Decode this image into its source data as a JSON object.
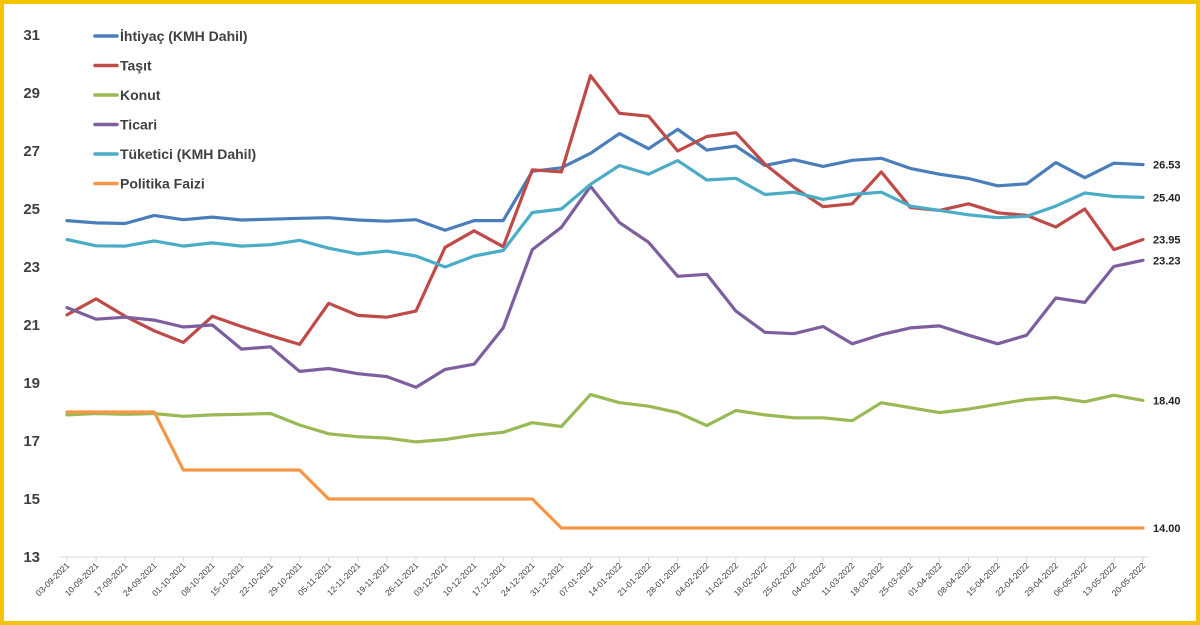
{
  "chart_data": {
    "type": "line",
    "title": "",
    "xlabel": "",
    "ylabel": "",
    "ylim": [
      13,
      31
    ],
    "yticks": [
      "13",
      "15",
      "17",
      "19",
      "21",
      "23",
      "25",
      "27",
      "29",
      "31"
    ],
    "grid": false,
    "legend_position": "top-left",
    "x": [
      "03-09-2021",
      "10-09-2021",
      "17-09-2021",
      "24-09-2021",
      "01-10-2021",
      "08-10-2021",
      "15-10-2021",
      "22-10-2021",
      "29-10-2021",
      "05-11-2021",
      "12-11-2021",
      "19-11-2021",
      "26-11-2021",
      "03-12-2021",
      "10-12-2021",
      "17-12-2021",
      "24-12-2021",
      "31-12-2021",
      "07-01-2022",
      "14-01-2022",
      "21-01-2022",
      "28-01-2022",
      "04-02-2022",
      "11-02-2022",
      "18-02-2022",
      "25-02-2022",
      "04-03-2022",
      "11-03-2022",
      "18-03-2022",
      "25-03-2022",
      "01-04-2022",
      "08-04-2022",
      "15-04-2022",
      "22-04-2022",
      "29-04-2022",
      "06-05-2022",
      "13-05-2022",
      "20-05-2022"
    ],
    "series": [
      {
        "name": "İhtiyaç (KMH Dahil)",
        "color": "#4a7ebb",
        "end_label": "26.53",
        "values": [
          24.6,
          24.52,
          24.5,
          24.78,
          24.63,
          24.72,
          24.62,
          24.65,
          24.68,
          24.7,
          24.62,
          24.58,
          24.63,
          24.27,
          24.6,
          24.6,
          26.3,
          26.42,
          26.92,
          27.6,
          27.08,
          27.75,
          27.03,
          27.17,
          26.5,
          26.7,
          26.47,
          26.68,
          26.75,
          26.4,
          26.2,
          26.05,
          25.8,
          25.87,
          26.6,
          26.08,
          26.58,
          26.53
        ]
      },
      {
        "name": "Taşıt",
        "color": "#be4b48",
        "end_label": "23.95",
        "values": [
          21.35,
          21.9,
          21.3,
          20.8,
          20.4,
          21.3,
          20.95,
          20.63,
          20.33,
          21.75,
          21.33,
          21.27,
          21.48,
          23.68,
          24.25,
          23.7,
          26.35,
          26.28,
          29.6,
          28.3,
          28.2,
          27.0,
          27.5,
          27.63,
          26.55,
          25.75,
          25.08,
          25.18,
          26.28,
          25.05,
          24.95,
          25.18,
          24.87,
          24.78,
          24.38,
          25.0,
          23.6,
          23.95
        ]
      },
      {
        "name": "Konut",
        "color": "#98b954",
        "end_label": "18.40",
        "values": [
          17.9,
          17.95,
          17.92,
          17.95,
          17.85,
          17.9,
          17.92,
          17.95,
          17.55,
          17.25,
          17.15,
          17.1,
          16.97,
          17.05,
          17.2,
          17.3,
          17.63,
          17.5,
          18.6,
          18.32,
          18.2,
          17.98,
          17.53,
          18.05,
          17.9,
          17.8,
          17.8,
          17.7,
          18.32,
          18.15,
          17.98,
          18.1,
          18.27,
          18.43,
          18.5,
          18.35,
          18.58,
          18.4
        ]
      },
      {
        "name": "Ticari",
        "color": "#7d5fa0",
        "end_label": "23.23",
        "values": [
          21.6,
          21.2,
          21.27,
          21.17,
          20.93,
          21.0,
          20.17,
          20.25,
          19.4,
          19.5,
          19.32,
          19.22,
          18.85,
          19.47,
          19.65,
          20.9,
          23.6,
          24.37,
          25.78,
          24.53,
          23.85,
          22.68,
          22.75,
          21.48,
          20.75,
          20.7,
          20.95,
          20.35,
          20.67,
          20.9,
          20.97,
          20.65,
          20.35,
          20.65,
          21.93,
          21.78,
          23.02,
          23.23
        ]
      },
      {
        "name": "Tüketici (KMH Dahil)",
        "color": "#4bacc6",
        "end_label": "25.40",
        "values": [
          23.95,
          23.73,
          23.72,
          23.9,
          23.72,
          23.83,
          23.72,
          23.77,
          23.92,
          23.65,
          23.45,
          23.55,
          23.38,
          23.0,
          23.38,
          23.57,
          24.88,
          25.0,
          25.85,
          26.5,
          26.2,
          26.67,
          26.0,
          26.06,
          25.5,
          25.58,
          25.33,
          25.5,
          25.58,
          25.1,
          24.95,
          24.8,
          24.7,
          24.75,
          25.1,
          25.55,
          25.43,
          25.4
        ]
      },
      {
        "name": "Politika Faizi",
        "color": "#f79646",
        "end_label": "14.00",
        "values": [
          18,
          18,
          18,
          18,
          16,
          16,
          16,
          16,
          16,
          15,
          15,
          15,
          15,
          15,
          15,
          15,
          15,
          14,
          14,
          14,
          14,
          14,
          14,
          14,
          14,
          14,
          14,
          14,
          14,
          14,
          14,
          14,
          14,
          14,
          14,
          14,
          14,
          14
        ]
      }
    ]
  }
}
